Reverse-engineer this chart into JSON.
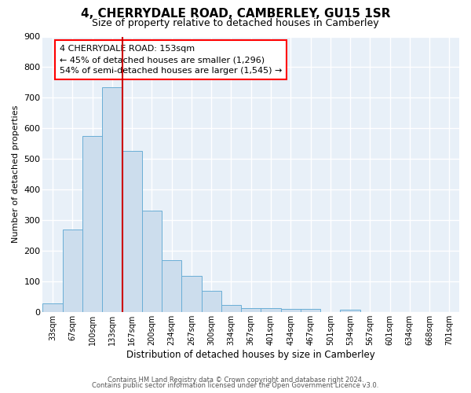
{
  "title": "4, CHERRYDALE ROAD, CAMBERLEY, GU15 1SR",
  "subtitle": "Size of property relative to detached houses in Camberley",
  "xlabel": "Distribution of detached houses by size in Camberley",
  "ylabel": "Number of detached properties",
  "bar_color": "#ccdded",
  "bar_edge_color": "#6aaed6",
  "background_color": "#e8f0f8",
  "grid_color": "white",
  "categories": [
    "33sqm",
    "67sqm",
    "100sqm",
    "133sqm",
    "167sqm",
    "200sqm",
    "234sqm",
    "267sqm",
    "300sqm",
    "334sqm",
    "367sqm",
    "401sqm",
    "434sqm",
    "467sqm",
    "501sqm",
    "534sqm",
    "567sqm",
    "601sqm",
    "634sqm",
    "668sqm",
    "701sqm"
  ],
  "values": [
    27,
    270,
    575,
    735,
    525,
    330,
    168,
    118,
    68,
    22,
    12,
    12,
    11,
    10,
    0,
    8,
    0,
    0,
    0,
    0,
    0
  ],
  "subject_line_color": "#cc0000",
  "annotation_text": "4 CHERRYDALE ROAD: 153sqm\n← 45% of detached houses are smaller (1,296)\n54% of semi-detached houses are larger (1,545) →",
  "ylim": [
    0,
    900
  ],
  "yticks": [
    0,
    100,
    200,
    300,
    400,
    500,
    600,
    700,
    800,
    900
  ],
  "footer_line1": "Contains HM Land Registry data © Crown copyright and database right 2024.",
  "footer_line2": "Contains public sector information licensed under the Open Government Licence v3.0."
}
